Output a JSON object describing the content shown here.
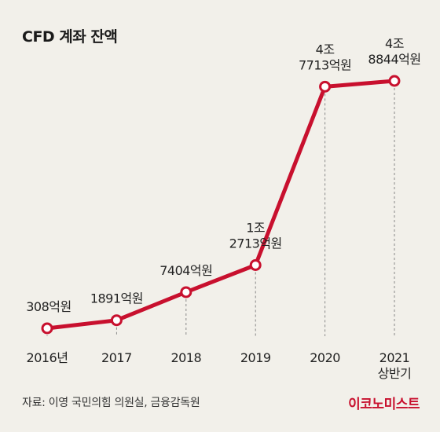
{
  "title": "CFD 계좌 잔액",
  "source": "자료: 이영 국민의힘 의원실, 금융감독원",
  "brand": "이코노미스트",
  "colors": {
    "line": "#c8102e",
    "background": "#f2f0ea",
    "marker_fill": "#ffffff"
  },
  "chart_data": {
    "type": "line",
    "title": "CFD 계좌 잔액",
    "xlabel": "",
    "ylabel": "",
    "unit": "억원",
    "grid": false,
    "ylim": [
      0,
      90000
    ],
    "categories": [
      [
        "2016년"
      ],
      [
        "2017"
      ],
      [
        "2018"
      ],
      [
        "2019"
      ],
      [
        "2020"
      ],
      [
        "2021",
        "상반기"
      ]
    ],
    "values": [
      308,
      1891,
      7404,
      12713,
      47713,
      48844
    ],
    "data_labels": [
      [
        "308억원"
      ],
      [
        "1891억원"
      ],
      [
        "7404억원"
      ],
      [
        "1조",
        "2713억원"
      ],
      [
        "4조",
        "7713억원"
      ],
      [
        "4조",
        "8844억원"
      ]
    ]
  }
}
